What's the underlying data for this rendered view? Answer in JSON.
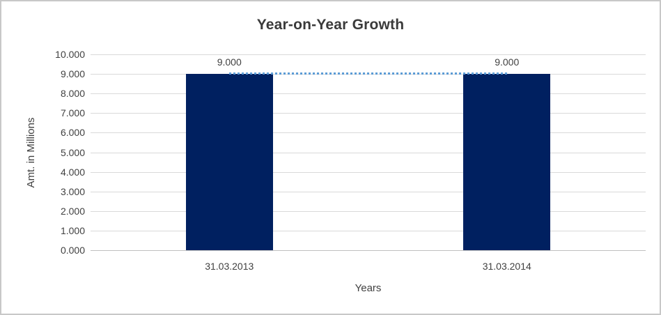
{
  "canvas": {
    "background": "#ffffff",
    "border_color": "#c8c8c8"
  },
  "chart_data": {
    "type": "bar",
    "title": "Year-on-Year Growth",
    "xlabel": "Years",
    "ylabel": "Amt. in Millions",
    "categories": [
      "31.03.2013",
      "31.03.2014"
    ],
    "series": [
      {
        "name": "amount-bars",
        "type": "bar",
        "values": [
          9.0,
          9.0
        ],
        "data_labels": [
          "9.000",
          "9.000"
        ],
        "color": "#002060"
      },
      {
        "name": "growth-line",
        "type": "line",
        "values": [
          9.0,
          9.0
        ],
        "color": "#5b9bd5",
        "line_style": "dotted"
      }
    ],
    "ylim": [
      0,
      10
    ],
    "ytick_step": 1,
    "ytick_labels": [
      "0.000",
      "1.000",
      "2.000",
      "3.000",
      "4.000",
      "5.000",
      "6.000",
      "7.000",
      "8.000",
      "9.000",
      "10.000"
    ],
    "grid": true,
    "legend_position": "none",
    "colors": {
      "gridline": "#d9d9d9",
      "axis_line": "#bfbfbf",
      "text": "#404040",
      "title_text": "#3a3a3a"
    }
  }
}
